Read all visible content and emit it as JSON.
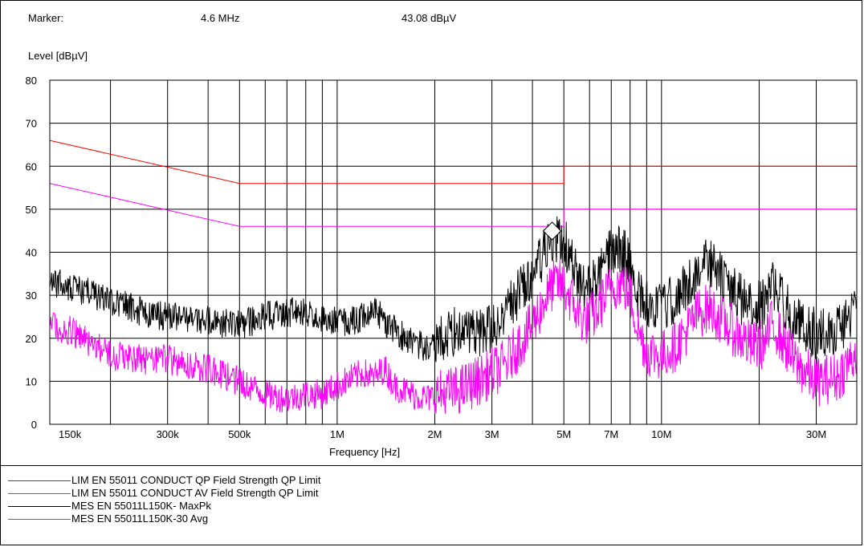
{
  "marker": {
    "label": "Marker:",
    "frequency": "4.6 MHz",
    "level": "43.08 dBµV",
    "freq_value_hz": 4600000,
    "level_value_db": 43.08
  },
  "chart_data": {
    "type": "line",
    "title": "",
    "xlabel": "Frequency [Hz]",
    "ylabel": "Level [dBµV]",
    "x_scale": "log",
    "xlim": [
      130000,
      40000000
    ],
    "ylim": [
      0,
      80
    ],
    "grid": true,
    "y_ticks": [
      0,
      10,
      20,
      30,
      40,
      50,
      60,
      70,
      80
    ],
    "x_ticks": [
      {
        "value": 150000,
        "label": "150k"
      },
      {
        "value": 300000,
        "label": "300k"
      },
      {
        "value": 500000,
        "label": "500k"
      },
      {
        "value": 1000000,
        "label": "1M"
      },
      {
        "value": 2000000,
        "label": "2M"
      },
      {
        "value": 3000000,
        "label": "3M"
      },
      {
        "value": 5000000,
        "label": "5M"
      },
      {
        "value": 7000000,
        "label": "7M"
      },
      {
        "value": 10000000,
        "label": "10M"
      },
      {
        "value": 30000000,
        "label": "30M"
      }
    ],
    "series": [
      {
        "name": "LIM  EN 55011 CONDUCT QP   Field Strength QP Limit",
        "color": "#ff0000",
        "points": [
          [
            130000,
            66
          ],
          [
            500000,
            56
          ],
          [
            5000000,
            56
          ],
          [
            5000000,
            60
          ],
          [
            40000000,
            60
          ]
        ]
      },
      {
        "name": "LIM  EN 55011 CONDUCT AV   Field Strength QP Limit",
        "color": "#ff00ff",
        "points": [
          [
            130000,
            56
          ],
          [
            500000,
            46
          ],
          [
            5000000,
            46
          ],
          [
            5000000,
            50
          ],
          [
            40000000,
            50
          ]
        ]
      },
      {
        "name": "MES  EN 55011L150K- MaxPk",
        "color": "#000000",
        "points": [
          [
            130000,
            33
          ],
          [
            150000,
            32
          ],
          [
            200000,
            29
          ],
          [
            250000,
            26
          ],
          [
            300000,
            25
          ],
          [
            400000,
            24
          ],
          [
            500000,
            23
          ],
          [
            600000,
            25
          ],
          [
            700000,
            26
          ],
          [
            800000,
            26
          ],
          [
            900000,
            24
          ],
          [
            1000000,
            24
          ],
          [
            1100000,
            24
          ],
          [
            1200000,
            25
          ],
          [
            1300000,
            27
          ],
          [
            1400000,
            24
          ],
          [
            1500000,
            22
          ],
          [
            1700000,
            19
          ],
          [
            1900000,
            18
          ],
          [
            2100000,
            20
          ],
          [
            2400000,
            22
          ],
          [
            2700000,
            21
          ],
          [
            3000000,
            22
          ],
          [
            3300000,
            26
          ],
          [
            3600000,
            30
          ],
          [
            4000000,
            35
          ],
          [
            4300000,
            39
          ],
          [
            4600000,
            42
          ],
          [
            4800000,
            43
          ],
          [
            5100000,
            41
          ],
          [
            5500000,
            34
          ],
          [
            5800000,
            31
          ],
          [
            6300000,
            33
          ],
          [
            7000000,
            40
          ],
          [
            7500000,
            41
          ],
          [
            8000000,
            37
          ],
          [
            8500000,
            30
          ],
          [
            9000000,
            28
          ],
          [
            10000000,
            27
          ],
          [
            11000000,
            29
          ],
          [
            12000000,
            32
          ],
          [
            13000000,
            36
          ],
          [
            14000000,
            38
          ],
          [
            15000000,
            35
          ],
          [
            17000000,
            30
          ],
          [
            19000000,
            27
          ],
          [
            21000000,
            28
          ],
          [
            22000000,
            33
          ],
          [
            23000000,
            30
          ],
          [
            26000000,
            24
          ],
          [
            30000000,
            21
          ],
          [
            35000000,
            22
          ],
          [
            40000000,
            27
          ]
        ]
      },
      {
        "name": "MES  EN 55011L150K-30 Avg",
        "color": "#ff00ff",
        "points": [
          [
            130000,
            23
          ],
          [
            150000,
            22
          ],
          [
            200000,
            16
          ],
          [
            250000,
            15
          ],
          [
            300000,
            15
          ],
          [
            400000,
            13
          ],
          [
            500000,
            10
          ],
          [
            600000,
            7
          ],
          [
            700000,
            6
          ],
          [
            800000,
            7
          ],
          [
            900000,
            7
          ],
          [
            1000000,
            9
          ],
          [
            1200000,
            12
          ],
          [
            1300000,
            11
          ],
          [
            1400000,
            13
          ],
          [
            1500000,
            9
          ],
          [
            1700000,
            7
          ],
          [
            1900000,
            6
          ],
          [
            2100000,
            7
          ],
          [
            2400000,
            8
          ],
          [
            2700000,
            10
          ],
          [
            3000000,
            12
          ],
          [
            3300000,
            14
          ],
          [
            3600000,
            18
          ],
          [
            4000000,
            23
          ],
          [
            4300000,
            28
          ],
          [
            4600000,
            32
          ],
          [
            4800000,
            33
          ],
          [
            5100000,
            31
          ],
          [
            5500000,
            26
          ],
          [
            5800000,
            24
          ],
          [
            6300000,
            26
          ],
          [
            7000000,
            32
          ],
          [
            7500000,
            33
          ],
          [
            8000000,
            30
          ],
          [
            8500000,
            22
          ],
          [
            9000000,
            17
          ],
          [
            10000000,
            16
          ],
          [
            11000000,
            18
          ],
          [
            12000000,
            22
          ],
          [
            13000000,
            26
          ],
          [
            14000000,
            27
          ],
          [
            15000000,
            25
          ],
          [
            17000000,
            21
          ],
          [
            19000000,
            18
          ],
          [
            21000000,
            19
          ],
          [
            22000000,
            24
          ],
          [
            23000000,
            21
          ],
          [
            26000000,
            14
          ],
          [
            30000000,
            10
          ],
          [
            35000000,
            11
          ],
          [
            40000000,
            17
          ]
        ]
      }
    ]
  }
}
